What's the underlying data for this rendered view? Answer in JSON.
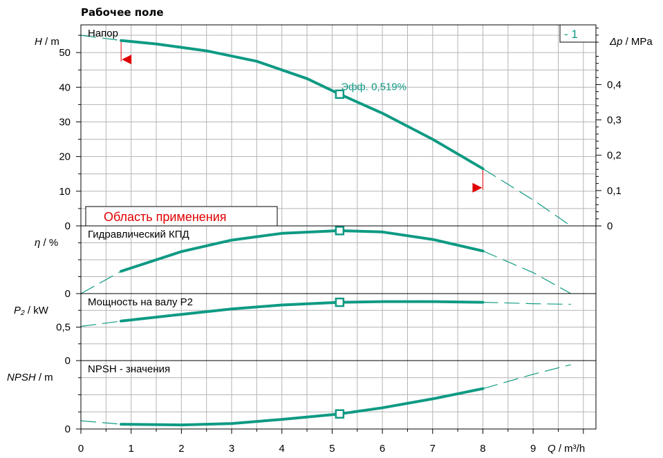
{
  "title": "Рабочее поле",
  "colors": {
    "curve": "#0e9a83",
    "grid": "#b4b4b4",
    "range": "#e00000",
    "axis": "#000000"
  },
  "x_axis": {
    "label_var": "Q",
    "label_unit": "/ m³/h",
    "ticks": [
      "0",
      "1",
      "2",
      "3",
      "4",
      "5",
      "6",
      "7",
      "8",
      "9"
    ],
    "range": [
      0,
      10.25
    ]
  },
  "curve_tag": "- 1",
  "efficiency_label": "Эфф.  0,519%",
  "application_range_label": "Область применения",
  "chart_data": [
    {
      "type": "line",
      "name": "head",
      "panel_label": "Напор",
      "ylabel_var": "H",
      "ylabel_unit": "/  m",
      "ylim": [
        0,
        58
      ],
      "yticks": [
        "0",
        "10",
        "20",
        "30",
        "40",
        "50"
      ],
      "right_axis": {
        "label_var": "Δp",
        "label_unit": "/ MPa",
        "ticks": [
          "0",
          "0,1",
          "0,2",
          "0,3",
          "0,4"
        ],
        "values": [
          0,
          0.1,
          0.2,
          0.3,
          0.4
        ],
        "ylim": [
          0,
          0.569
        ]
      },
      "solid": {
        "x": [
          0.8,
          1.5,
          2.5,
          3.5,
          4.5,
          5.15,
          6,
          7,
          8
        ],
        "y": [
          53.5,
          52.5,
          50.5,
          47.5,
          42.5,
          38,
          32.5,
          25,
          16.5
        ]
      },
      "dashed_left": {
        "x": [
          0,
          0.8
        ],
        "y": [
          55,
          53.5
        ]
      },
      "dashed_right": {
        "x": [
          8,
          8.5,
          9,
          9.4,
          9.75
        ],
        "y": [
          16.5,
          12,
          7.5,
          3.5,
          0
        ]
      },
      "marker": {
        "x": 5.15,
        "y": 38
      },
      "min_flow_marker": {
        "x": 0.8,
        "y": 48
      },
      "max_flow_marker": {
        "x": 8,
        "y": 11
      },
      "application_range": [
        0.8,
        8
      ]
    },
    {
      "type": "line",
      "name": "efficiency",
      "panel_label": "Гидравлический КПД",
      "ylabel_var": "η",
      "ylabel_unit": "/  %",
      "ylim": [
        0,
        1
      ],
      "yticks": [
        "0"
      ],
      "solid": {
        "x": [
          0.8,
          2,
          3,
          4,
          5.15,
          6,
          7,
          8
        ],
        "y": [
          0.33,
          0.62,
          0.79,
          0.89,
          0.93,
          0.91,
          0.8,
          0.63
        ]
      },
      "dashed_left": {
        "x": [
          0,
          0.8
        ],
        "y": [
          0,
          0.33
        ]
      },
      "dashed_right": {
        "x": [
          8,
          9,
          9.75
        ],
        "y": [
          0.63,
          0.31,
          0
        ]
      },
      "marker": {
        "x": 5.15,
        "y": 0.93
      }
    },
    {
      "type": "line",
      "name": "power",
      "panel_label": "Мощность на валу P2",
      "ylabel_var": "P₂",
      "ylabel_unit": "/ kW",
      "ylim": [
        0,
        1
      ],
      "yticks": [
        "0",
        "0,5"
      ],
      "solid": {
        "x": [
          0.8,
          2,
          3,
          4,
          5.15,
          6,
          7,
          8
        ],
        "y": [
          0.59,
          0.69,
          0.77,
          0.83,
          0.87,
          0.88,
          0.88,
          0.87
        ]
      },
      "dashed_left": {
        "x": [
          0,
          0.8
        ],
        "y": [
          0.51,
          0.59
        ]
      },
      "dashed_right": {
        "x": [
          8,
          9,
          9.75
        ],
        "y": [
          0.87,
          0.85,
          0.84
        ]
      },
      "marker": {
        "x": 5.15,
        "y": 0.87
      }
    },
    {
      "type": "line",
      "name": "npsh",
      "panel_label": "NPSH - значения",
      "ylabel_var": "NPSH",
      "ylabel_unit": "/  m",
      "ylim": [
        0,
        1
      ],
      "yticks": [
        "0"
      ],
      "solid": {
        "x": [
          0.8,
          2,
          3,
          4,
          5.15,
          6,
          7,
          8
        ],
        "y": [
          0.07,
          0.06,
          0.08,
          0.14,
          0.22,
          0.31,
          0.44,
          0.59
        ]
      },
      "dashed_left": {
        "x": [
          0,
          0.8
        ],
        "y": [
          0.12,
          0.07
        ]
      },
      "dashed_right": {
        "x": [
          8,
          9,
          9.75
        ],
        "y": [
          0.59,
          0.8,
          0.94
        ]
      },
      "marker": {
        "x": 5.15,
        "y": 0.22
      }
    }
  ]
}
